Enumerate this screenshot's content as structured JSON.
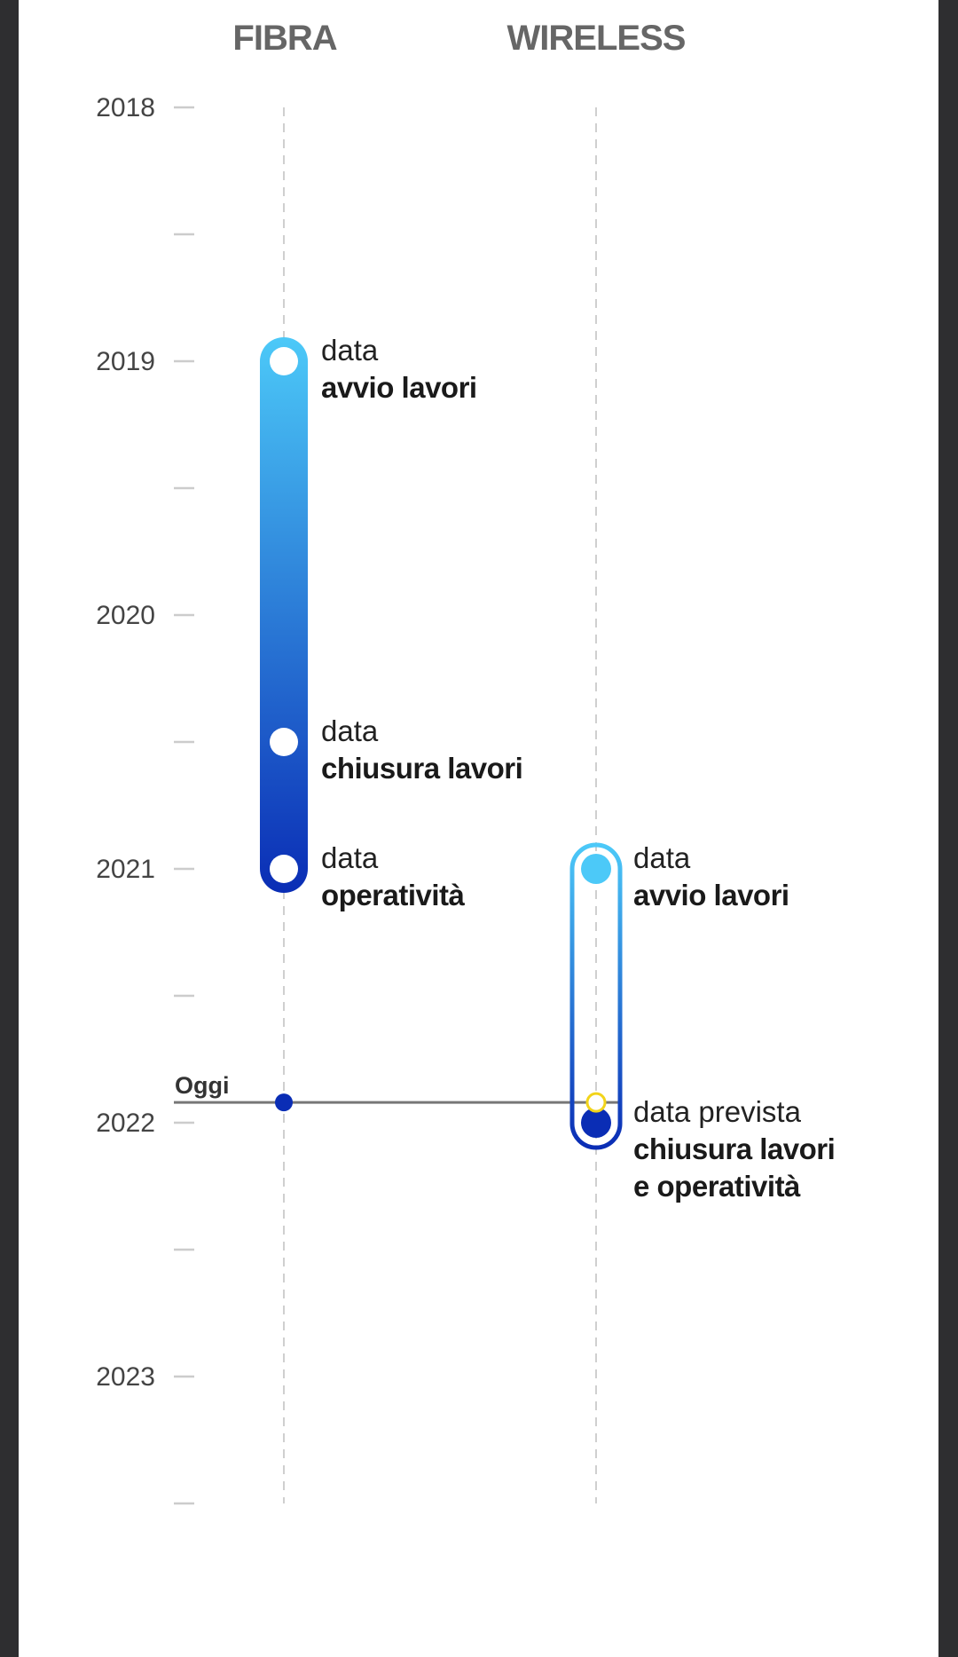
{
  "chart_data": {
    "type": "timeline",
    "columns": [
      {
        "name": "FIBRA",
        "events": [
          {
            "year": 2019.0,
            "line1": "data",
            "line2": "avvio lavori",
            "line3": ""
          },
          {
            "year": 2020.5,
            "line1": "data",
            "line2": "chiusura lavori",
            "line3": ""
          },
          {
            "year": 2021.0,
            "line1": "data",
            "line2": "operatività",
            "line3": ""
          }
        ],
        "range": [
          2019.0,
          2021.0
        ]
      },
      {
        "name": "WIRELESS",
        "events": [
          {
            "year": 2021.0,
            "line1": "data",
            "line2": "avvio lavori",
            "line3": ""
          },
          {
            "year": 2022.0,
            "line1": "data prevista",
            "line2": "chiusura lavori",
            "line3": "e operatività"
          }
        ],
        "range": [
          2021.0,
          2022.0
        ]
      }
    ],
    "today": {
      "label": "Oggi",
      "year": 2021.92
    },
    "year_ticks": [
      "2018",
      "2019",
      "2020",
      "2021",
      "2022",
      "2023"
    ],
    "ylim": [
      2018,
      2023.5
    ],
    "colors": {
      "light": "#4cc9f8",
      "dark": "#0a2db5",
      "today_marker": "#f2d41a",
      "axis": "#cccccc"
    }
  }
}
